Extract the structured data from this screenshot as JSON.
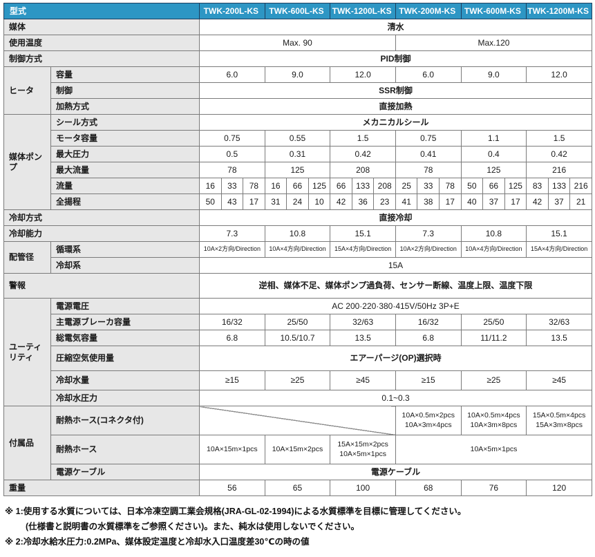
{
  "colors": {
    "header_bg": "#2d96c4",
    "header_divider": "#1e3e5e",
    "label_bg": "#e7e7e7",
    "grid_border": "#7a7a7a"
  },
  "table": {
    "rows": [
      {
        "cls": "head",
        "n": "header-row",
        "cells": [
          {
            "t": "型式",
            "h": 1,
            "cs": 2,
            "cls": "mlab",
            "n": "table-title"
          },
          {
            "t": "TWK-200L-KS",
            "h": 1,
            "cs": 3,
            "cls": "model",
            "n": "column-header-twk-200l-ks"
          },
          {
            "t": "TWK-600L-KS",
            "h": 1,
            "cs": 3,
            "cls": "model",
            "n": "column-header-twk-600l-ks"
          },
          {
            "t": "TWK-1200L-KS",
            "h": 1,
            "cs": 3,
            "cls": "model",
            "n": "column-header-twk-1200l-ks"
          },
          {
            "t": "TWK-200M-KS",
            "h": 1,
            "cs": 3,
            "cls": "model",
            "n": "column-header-twk-200m-ks"
          },
          {
            "t": "TWK-600M-KS",
            "h": 1,
            "cs": 3,
            "cls": "model",
            "n": "column-header-twk-600m-ks"
          },
          {
            "t": "TWK-1200M-KS",
            "h": 1,
            "cs": 3,
            "cls": "model",
            "n": "column-header-twk-1200m-ks"
          }
        ]
      },
      {
        "n": "row-medium",
        "cells": [
          {
            "t": "媒体",
            "h": 1,
            "cs": 2,
            "n": "row-label-medium"
          },
          {
            "t": "清水",
            "cs": 18,
            "cls": "jp",
            "n": "value-medium"
          }
        ]
      },
      {
        "n": "row-operating-temp",
        "cells": [
          {
            "t": "使用温度",
            "h": 1,
            "cs": 2,
            "n": "row-label-operating-temp"
          },
          {
            "t": "Max. 90",
            "cs": 9,
            "n": "value-temp-l"
          },
          {
            "t": "Max.120",
            "cs": 9,
            "n": "value-temp-m"
          }
        ]
      },
      {
        "n": "row-control-method",
        "cells": [
          {
            "t": "制御方式",
            "h": 1,
            "cs": 2,
            "n": "row-label-control-method"
          },
          {
            "t": "PID制御",
            "cs": 18,
            "cls": "jp",
            "n": "value-control-method"
          }
        ]
      },
      {
        "n": "row-heater-capacity",
        "cells": [
          {
            "t": "ヒータ",
            "h": 1,
            "rs": 3,
            "n": "group-label-heater"
          },
          {
            "t": "容量",
            "h": 1,
            "n": "row-label-capacity"
          },
          {
            "t": "6.0",
            "cs": 3
          },
          {
            "t": "9.0",
            "cs": 3
          },
          {
            "t": "12.0",
            "cs": 3
          },
          {
            "t": "6.0",
            "cs": 3
          },
          {
            "t": "9.0",
            "cs": 3
          },
          {
            "t": "12.0",
            "cs": 3
          }
        ]
      },
      {
        "n": "row-heater-control",
        "cells": [
          {
            "t": "制御",
            "h": 1,
            "n": "row-label-heater-control"
          },
          {
            "t": "SSR制御",
            "cs": 18,
            "cls": "jp",
            "n": "value-heater-control"
          }
        ]
      },
      {
        "n": "row-heating-method",
        "cells": [
          {
            "t": "加熱方式",
            "h": 1,
            "n": "row-label-heating-method"
          },
          {
            "t": "直接加熱",
            "cs": 18,
            "cls": "jp",
            "n": "value-heating-method"
          }
        ]
      },
      {
        "n": "row-seal-method",
        "cells": [
          {
            "t": "媒体ポンプ",
            "h": 1,
            "rs": 6,
            "n": "group-label-medium-pump"
          },
          {
            "t": "シール方式",
            "h": 1,
            "n": "row-label-seal-method"
          },
          {
            "t": "メカニカルシール",
            "cs": 18,
            "cls": "jp",
            "n": "value-seal-method"
          }
        ]
      },
      {
        "n": "row-motor-capacity",
        "cells": [
          {
            "t": "モータ容量",
            "h": 1,
            "n": "row-label-motor-capacity"
          },
          {
            "t": "0.75",
            "cs": 3
          },
          {
            "t": "0.55",
            "cs": 3
          },
          {
            "t": "1.5",
            "cs": 3
          },
          {
            "t": "0.75",
            "cs": 3
          },
          {
            "t": "1.1",
            "cs": 3
          },
          {
            "t": "1.5",
            "cs": 3
          }
        ]
      },
      {
        "n": "row-max-pressure",
        "cells": [
          {
            "t": "最大圧力",
            "h": 1,
            "n": "row-label-max-pressure"
          },
          {
            "t": "0.5",
            "cs": 3
          },
          {
            "t": "0.31",
            "cs": 3
          },
          {
            "t": "0.42",
            "cs": 3
          },
          {
            "t": "0.41",
            "cs": 3
          },
          {
            "t": "0.4",
            "cs": 3
          },
          {
            "t": "0.42",
            "cs": 3
          }
        ]
      },
      {
        "n": "row-max-flow",
        "cells": [
          {
            "t": "最大流量",
            "h": 1,
            "n": "row-label-max-flow"
          },
          {
            "t": "78",
            "cs": 3
          },
          {
            "t": "125",
            "cs": 3
          },
          {
            "t": "208",
            "cs": 3
          },
          {
            "t": "78",
            "cs": 3
          },
          {
            "t": "125",
            "cs": 3
          },
          {
            "t": "216",
            "cs": 3
          }
        ]
      },
      {
        "n": "row-flow",
        "cells": [
          {
            "t": "流量",
            "h": 1,
            "n": "row-label-flow"
          },
          {
            "t": "16"
          },
          {
            "t": "33",
            "cls": "dash"
          },
          {
            "t": "78",
            "cls": "dash"
          },
          {
            "t": "16"
          },
          {
            "t": "66",
            "cls": "dash"
          },
          {
            "t": "125",
            "cls": "dash"
          },
          {
            "t": "66"
          },
          {
            "t": "133",
            "cls": "dash"
          },
          {
            "t": "208",
            "cls": "dash"
          },
          {
            "t": "25"
          },
          {
            "t": "33",
            "cls": "dash"
          },
          {
            "t": "78",
            "cls": "dash"
          },
          {
            "t": "50"
          },
          {
            "t": "66",
            "cls": "dash"
          },
          {
            "t": "125",
            "cls": "dash"
          },
          {
            "t": "83"
          },
          {
            "t": "133",
            "cls": "dash"
          },
          {
            "t": "216",
            "cls": "dash"
          }
        ]
      },
      {
        "n": "row-total-head",
        "cells": [
          {
            "t": "全揚程",
            "h": 1,
            "n": "row-label-total-head"
          },
          {
            "t": "50"
          },
          {
            "t": "43",
            "cls": "dash"
          },
          {
            "t": "17",
            "cls": "dash"
          },
          {
            "t": "31"
          },
          {
            "t": "24",
            "cls": "dash"
          },
          {
            "t": "10",
            "cls": "dash"
          },
          {
            "t": "42"
          },
          {
            "t": "36",
            "cls": "dash"
          },
          {
            "t": "23",
            "cls": "dash"
          },
          {
            "t": "41"
          },
          {
            "t": "38",
            "cls": "dash"
          },
          {
            "t": "17",
            "cls": "dash"
          },
          {
            "t": "40"
          },
          {
            "t": "37",
            "cls": "dash"
          },
          {
            "t": "17",
            "cls": "dash"
          },
          {
            "t": "42"
          },
          {
            "t": "37",
            "cls": "dash"
          },
          {
            "t": "21",
            "cls": "dash"
          }
        ]
      },
      {
        "n": "row-cooling-method",
        "cells": [
          {
            "t": "冷却方式",
            "h": 1,
            "cs": 2,
            "n": "row-label-cooling-method"
          },
          {
            "t": "直接冷却",
            "cs": 18,
            "cls": "jp",
            "n": "value-cooling-method"
          }
        ]
      },
      {
        "n": "row-cooling-capacity",
        "cells": [
          {
            "t": "冷却能力",
            "h": 1,
            "cs": 2,
            "n": "row-label-cooling-capacity"
          },
          {
            "t": "7.3",
            "cs": 3
          },
          {
            "t": "10.8",
            "cs": 3
          },
          {
            "t": "15.1",
            "cs": 3
          },
          {
            "t": "7.3",
            "cs": 3
          },
          {
            "t": "10.8",
            "cs": 3
          },
          {
            "t": "15.1",
            "cs": 3
          }
        ]
      },
      {
        "n": "row-circulation-piping",
        "cells": [
          {
            "t": "配管径",
            "h": 1,
            "rs": 2,
            "n": "group-label-piping-diameter"
          },
          {
            "t": "循環系",
            "h": 1,
            "n": "row-label-circulation"
          },
          {
            "t": "10A×2方向/Direction",
            "cs": 3,
            "cls": "tiny"
          },
          {
            "t": "10A×4方向/Direction",
            "cs": 3,
            "cls": "tiny"
          },
          {
            "t": "15A×4方向/Direction",
            "cs": 3,
            "cls": "tiny"
          },
          {
            "t": "10A×2方向/Direction",
            "cs": 3,
            "cls": "tiny"
          },
          {
            "t": "10A×4方向/Direction",
            "cs": 3,
            "cls": "tiny"
          },
          {
            "t": "15A×4方向/Direction",
            "cs": 3,
            "cls": "tiny"
          }
        ]
      },
      {
        "n": "row-cooling-piping",
        "cells": [
          {
            "t": "冷却系",
            "h": 1,
            "n": "row-label-cooling-piping"
          },
          {
            "t": "15A",
            "cs": 18,
            "n": "value-cooling-piping"
          }
        ]
      },
      {
        "cls": "rh-tall",
        "n": "row-alarm",
        "cells": [
          {
            "t": "警報",
            "h": 1,
            "cs": 2,
            "n": "row-label-alarm"
          },
          {
            "t": "逆相、媒体不足、媒体ポンプ過負荷、センサー断線、温度上限、温度下限",
            "cs": 18,
            "cls": "jp",
            "n": "value-alarm"
          }
        ]
      },
      {
        "n": "row-power-voltage",
        "cells": [
          {
            "t": "ユーティ\nリティ",
            "h": 1,
            "rs": 6,
            "n": "group-label-utility"
          },
          {
            "t": "電源電圧",
            "h": 1,
            "n": "row-label-power-voltage"
          },
          {
            "t": "AC 200·220·380·415V/50Hz 3P+E",
            "cs": 18,
            "n": "value-power-voltage"
          }
        ]
      },
      {
        "n": "row-breaker-capacity",
        "cells": [
          {
            "t": "主電源ブレーカ容量",
            "h": 1,
            "n": "row-label-breaker-capacity"
          },
          {
            "t": "16/32",
            "cs": 3
          },
          {
            "t": "25/50",
            "cs": 3
          },
          {
            "t": "32/63",
            "cs": 3
          },
          {
            "t": "16/32",
            "cs": 3
          },
          {
            "t": "25/50",
            "cs": 3
          },
          {
            "t": "32/63",
            "cs": 3
          }
        ]
      },
      {
        "n": "row-total-electric-capacity",
        "cells": [
          {
            "t": "総電気容量",
            "h": 1,
            "n": "row-label-total-electric-capacity"
          },
          {
            "t": "6.8",
            "cs": 3
          },
          {
            "t": "10.5/10.7",
            "cs": 3
          },
          {
            "t": "13.5",
            "cs": 3
          },
          {
            "t": "6.8",
            "cs": 3
          },
          {
            "t": "11/11.2",
            "cs": 3
          },
          {
            "t": "13.5",
            "cs": 3
          }
        ]
      },
      {
        "cls": "rh-tall",
        "n": "row-compressed-air",
        "cells": [
          {
            "t": "圧縮空気使用量",
            "h": 1,
            "n": "row-label-compressed-air"
          },
          {
            "t": "エアーパージ(OP)選択時",
            "cs": 18,
            "cls": "jp",
            "n": "value-compressed-air"
          }
        ]
      },
      {
        "cls": "rh-med",
        "n": "row-cooling-water-volume",
        "cells": [
          {
            "t": "冷却水量",
            "h": 1,
            "n": "row-label-cooling-water-volume"
          },
          {
            "t": "≥15",
            "cs": 3
          },
          {
            "t": "≥25",
            "cs": 3
          },
          {
            "t": "≥45",
            "cs": 3
          },
          {
            "t": "≥15",
            "cs": 3
          },
          {
            "t": "≥25",
            "cs": 3
          },
          {
            "t": "≥45",
            "cs": 3
          }
        ]
      },
      {
        "n": "row-cooling-water-pressure",
        "cells": [
          {
            "t": "冷却水圧力",
            "h": 1,
            "n": "row-label-cooling-water-pressure"
          },
          {
            "t": "0.1~0.3",
            "cs": 18,
            "n": "value-cooling-water-pressure"
          }
        ]
      },
      {
        "cls": "rh-xtall",
        "n": "row-heat-hose-connector",
        "cells": [
          {
            "t": "付属品",
            "h": 1,
            "rs": 3,
            "n": "group-label-accessories"
          },
          {
            "t": "耐熱ホース(コネクタ付)",
            "h": 1,
            "n": "row-label-heat-hose-connector"
          },
          {
            "t": "",
            "cs": 9,
            "cls": "diag",
            "n": "not-applicable-diagonal"
          },
          {
            "t": "10A×0.5m×2pcs\n10A×3m×4pcs",
            "cs": 3,
            "cls": "tiny2"
          },
          {
            "t": "10A×0.5m×4pcs\n10A×3m×8pcs",
            "cs": 3,
            "cls": "tiny2"
          },
          {
            "t": "15A×0.5m×4pcs\n15A×3m×8pcs",
            "cs": 3,
            "cls": "tiny2"
          }
        ]
      },
      {
        "cls": "rh-xtall",
        "n": "row-heat-hose",
        "cells": [
          {
            "t": "耐熱ホース",
            "h": 1,
            "n": "row-label-heat-hose"
          },
          {
            "t": "10A×15m×1pcs",
            "cs": 3,
            "cls": "tiny1"
          },
          {
            "t": "10A×15m×2pcs",
            "cs": 3,
            "cls": "tiny1"
          },
          {
            "t": "15A×15m×2pcs\n10A×5m×1pcs",
            "cs": 3,
            "cls": "tiny2"
          },
          {
            "t": "10A×5m×1pcs",
            "cs": 9,
            "cls": "tiny1"
          }
        ]
      },
      {
        "n": "row-power-cable",
        "cells": [
          {
            "t": "電源ケーブル",
            "h": 1,
            "n": "row-label-power-cable"
          },
          {
            "t": "電源ケーブル",
            "cs": 18,
            "cls": "jp",
            "n": "value-power-cable"
          }
        ]
      },
      {
        "n": "row-weight",
        "cells": [
          {
            "t": "重量",
            "h": 1,
            "cs": 2,
            "n": "row-label-weight"
          },
          {
            "t": "56",
            "cs": 3
          },
          {
            "t": "65",
            "cs": 3
          },
          {
            "t": "100",
            "cs": 3
          },
          {
            "t": "68",
            "cs": 3
          },
          {
            "t": "76",
            "cs": 3
          },
          {
            "t": "120",
            "cs": 3
          }
        ]
      }
    ]
  },
  "footnotes": {
    "note1a": "※ 1:使用する水質については、日本冷凍空調工業会規格(JRA-GL-02-1994)による水質標準を目標に管理してください。",
    "note1b": "(仕様書と説明書の水質標準をご参照ください)。また、純水は使用しないでください。",
    "note2": "※ 2:冷却水給水圧力:0.2MPa、媒体設定温度と冷却水入口温度差30℃の時の値"
  }
}
